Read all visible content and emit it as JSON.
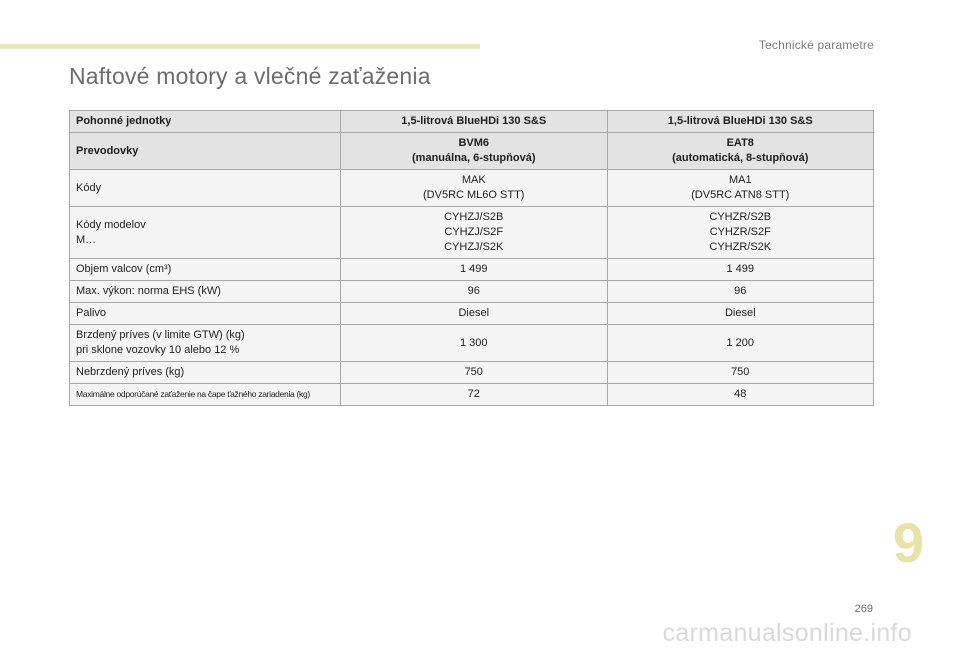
{
  "header": {
    "section": "Technické parametre"
  },
  "title": "Naftové motory a vlečné zaťaženia",
  "table": {
    "rows": [
      {
        "label": "Pohonné jednotky",
        "c1": "1,5-litrová BlueHDi 130 S&S",
        "c2": "1,5-litrová BlueHDi 130 S&S"
      },
      {
        "label": "Prevodovky",
        "c1": [
          "BVM6",
          "(manuálna, 6-stupňová)"
        ],
        "c2": [
          "EAT8",
          "(automatická, 8-stupňová)"
        ]
      },
      {
        "label": "Kódy",
        "c1": [
          "MAK",
          "(DV5RC ML6O STT)"
        ],
        "c2": [
          "MA1",
          "(DV5RC ATN8 STT)"
        ]
      },
      {
        "label": [
          "Kódy modelov",
          "M…"
        ],
        "c1": [
          "CYHZJ/S2B",
          "CYHZJ/S2F",
          "CYHZJ/S2K"
        ],
        "c2": [
          "CYHZR/S2B",
          "CYHZR/S2F",
          "CYHZR/S2K"
        ]
      },
      {
        "label": "Objem valcov (cm³)",
        "c1": "1 499",
        "c2": "1 499"
      },
      {
        "label": "Max. výkon: norma EHS (kW)",
        "c1": "96",
        "c2": "96"
      },
      {
        "label": "Palivo",
        "c1": "Diesel",
        "c2": "Diesel"
      },
      {
        "label": [
          "Brzdený príves (v limite GTW) (kg)",
          "pri sklone vozovky 10 alebo 12 %"
        ],
        "c1": "1 300",
        "c2": "1 200"
      },
      {
        "label": "Nebrzdený príves (kg)",
        "c1": "750",
        "c2": "750"
      },
      {
        "label": "Maximálne odporúčané zaťaženie na čape ťažného zariadenia (kg)",
        "c1": "72",
        "c2": "48"
      }
    ]
  },
  "chapter_number": "9",
  "page_number": "269",
  "watermark": "carmanualsonline.info",
  "colors": {
    "accent_rule": "#e9e6b9",
    "chapter_number": "#e8e2a6",
    "header_row_bg": "#e3e3e3",
    "row_bg": "#f4f4f4",
    "border": "#a8a8a8"
  }
}
